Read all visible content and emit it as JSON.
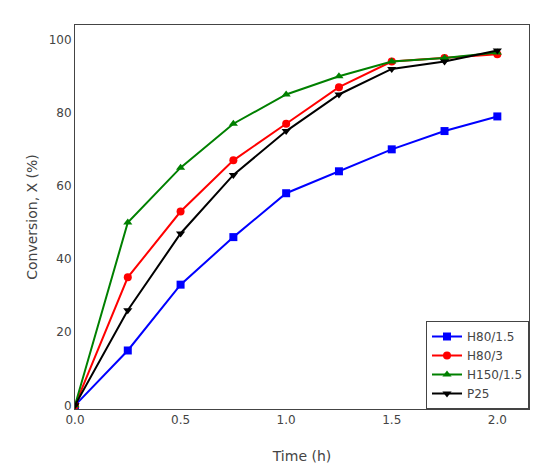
{
  "chart_data": {
    "type": "line",
    "x_label": "Time (h)",
    "y_label": "Conversion, X (%)",
    "x": [
      0.0,
      0.25,
      0.5,
      0.75,
      1.0,
      1.25,
      1.5,
      1.75,
      2.0
    ],
    "series": [
      {
        "name": "H80/1.5",
        "color": "#0000FF",
        "marker": "square",
        "values": [
          0.0,
          15.0,
          33.0,
          46.0,
          58.0,
          64.0,
          70.0,
          75.0,
          79.0
        ]
      },
      {
        "name": "H80/3",
        "color": "#FF0000",
        "marker": "circle",
        "values": [
          0.0,
          35.0,
          53.0,
          67.0,
          77.0,
          87.0,
          94.0,
          95.0,
          96.0
        ]
      },
      {
        "name": "H150/1.5",
        "color": "#008000",
        "marker": "triangle-up",
        "values": [
          0.0,
          50.0,
          65.0,
          77.0,
          85.0,
          90.0,
          94.0,
          95.0,
          96.5
        ]
      },
      {
        "name": "P25",
        "color": "#000000",
        "marker": "triangle-down",
        "values": [
          0.0,
          26.0,
          47.0,
          63.0,
          75.0,
          85.0,
          92.0,
          94.0,
          97.0
        ]
      }
    ],
    "xlim": [
      0.0,
      2.15
    ],
    "ylim": [
      -1,
      104
    ],
    "xticks": [
      {
        "value": 0.0,
        "label": "0.0"
      },
      {
        "value": 0.5,
        "label": "0.5"
      },
      {
        "value": 1.0,
        "label": "1.0"
      },
      {
        "value": 1.5,
        "label": "1.5"
      },
      {
        "value": 2.0,
        "label": "2.0"
      }
    ],
    "yticks": [
      0,
      20,
      40,
      60,
      80,
      100
    ],
    "grid": false,
    "legend": "lower right"
  }
}
